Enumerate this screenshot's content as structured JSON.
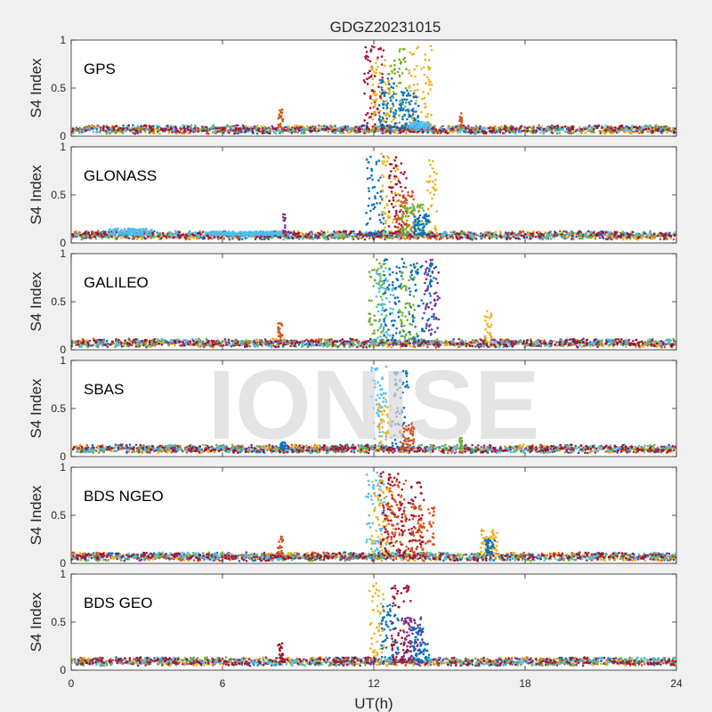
{
  "chart_data": {
    "type": "scatter",
    "title": "GDGZ20231015",
    "xlabel": "UT(h)",
    "ylabel": "S4 Index",
    "xlim": [
      0,
      24
    ],
    "ylim": [
      0,
      1
    ],
    "xticks": [
      0,
      6,
      12,
      18,
      24
    ],
    "yticks": [
      0,
      0.5,
      1
    ],
    "watermark": "IONISE",
    "colors": [
      "#0072BD",
      "#D95319",
      "#EDB120",
      "#7E2F8E",
      "#77AC30",
      "#4DBEEE",
      "#A2142F"
    ],
    "panels": [
      {
        "label": "GPS",
        "baseline": 0.07,
        "bursts": [
          {
            "x0": 11.6,
            "x1": 12.4,
            "y": 0.95,
            "color": 6
          },
          {
            "x0": 11.9,
            "x1": 12.8,
            "y": 0.8,
            "color": 2
          },
          {
            "x0": 12.6,
            "x1": 13.3,
            "y": 0.95,
            "color": 4
          },
          {
            "x0": 12.2,
            "x1": 12.9,
            "y": 0.6,
            "color": 0
          },
          {
            "x0": 13.4,
            "x1": 14.3,
            "y": 0.95,
            "color": 2
          },
          {
            "x0": 13.0,
            "x1": 13.8,
            "y": 0.5,
            "color": 0
          },
          {
            "x0": 13.4,
            "x1": 14.2,
            "y": 0.15,
            "color": 5
          },
          {
            "x0": 8.2,
            "x1": 8.4,
            "y": 0.28,
            "color": 1
          },
          {
            "x0": 15.4,
            "x1": 15.5,
            "y": 0.25,
            "color": 1
          }
        ]
      },
      {
        "label": "GLONASS",
        "baseline": 0.08,
        "bursts": [
          {
            "x0": 11.7,
            "x1": 12.4,
            "y": 0.9,
            "color": 0
          },
          {
            "x0": 12.3,
            "x1": 13.0,
            "y": 0.95,
            "color": 2
          },
          {
            "x0": 12.6,
            "x1": 13.3,
            "y": 0.9,
            "color": 6
          },
          {
            "x0": 12.8,
            "x1": 13.6,
            "y": 0.55,
            "color": 1
          },
          {
            "x0": 13.1,
            "x1": 14.0,
            "y": 0.4,
            "color": 4
          },
          {
            "x0": 14.1,
            "x1": 14.5,
            "y": 0.9,
            "color": 2
          },
          {
            "x0": 13.6,
            "x1": 14.2,
            "y": 0.3,
            "color": 0
          },
          {
            "x0": 1.5,
            "x1": 3.2,
            "y": 0.15,
            "color": 5
          },
          {
            "x0": 5.5,
            "x1": 8.4,
            "y": 0.12,
            "color": 5
          },
          {
            "x0": 8.4,
            "x1": 8.5,
            "y": 0.34,
            "color": 3
          }
        ]
      },
      {
        "label": "GALILEO",
        "baseline": 0.07,
        "bursts": [
          {
            "x0": 11.8,
            "x1": 12.5,
            "y": 0.95,
            "color": 4
          },
          {
            "x0": 12.1,
            "x1": 12.8,
            "y": 0.85,
            "color": 5
          },
          {
            "x0": 12.4,
            "x1": 13.2,
            "y": 0.95,
            "color": 0
          },
          {
            "x0": 13.0,
            "x1": 13.7,
            "y": 0.9,
            "color": 4
          },
          {
            "x0": 13.4,
            "x1": 14.4,
            "y": 0.9,
            "color": 0
          },
          {
            "x0": 14.0,
            "x1": 14.6,
            "y": 0.95,
            "color": 3
          },
          {
            "x0": 16.4,
            "x1": 16.7,
            "y": 0.4,
            "color": 2
          },
          {
            "x0": 8.2,
            "x1": 8.4,
            "y": 0.28,
            "color": 1
          }
        ]
      },
      {
        "label": "SBAS",
        "baseline": 0.08,
        "bursts": [
          {
            "x0": 11.9,
            "x1": 12.5,
            "y": 0.95,
            "color": 5
          },
          {
            "x0": 12.2,
            "x1": 12.7,
            "y": 0.6,
            "color": 2
          },
          {
            "x0": 12.7,
            "x1": 13.4,
            "y": 0.9,
            "color": 0
          },
          {
            "x0": 13.0,
            "x1": 13.6,
            "y": 0.35,
            "color": 1
          },
          {
            "x0": 8.3,
            "x1": 8.5,
            "y": 0.15,
            "color": 0
          },
          {
            "x0": 15.4,
            "x1": 15.5,
            "y": 0.2,
            "color": 4
          }
        ]
      },
      {
        "label": "BDS NGEO",
        "baseline": 0.07,
        "bursts": [
          {
            "x0": 11.7,
            "x1": 12.5,
            "y": 0.95,
            "color": 5
          },
          {
            "x0": 11.9,
            "x1": 12.8,
            "y": 0.9,
            "color": 2
          },
          {
            "x0": 12.2,
            "x1": 13.0,
            "y": 0.95,
            "color": 6
          },
          {
            "x0": 12.5,
            "x1": 13.3,
            "y": 0.9,
            "color": 1
          },
          {
            "x0": 13.0,
            "x1": 14.0,
            "y": 0.85,
            "color": 6
          },
          {
            "x0": 13.5,
            "x1": 14.4,
            "y": 0.6,
            "color": 1
          },
          {
            "x0": 16.2,
            "x1": 16.9,
            "y": 0.35,
            "color": 2
          },
          {
            "x0": 16.4,
            "x1": 16.8,
            "y": 0.25,
            "color": 0
          },
          {
            "x0": 8.2,
            "x1": 8.4,
            "y": 0.28,
            "color": 1
          }
        ]
      },
      {
        "label": "BDS GEO",
        "baseline": 0.09,
        "bursts": [
          {
            "x0": 11.8,
            "x1": 12.4,
            "y": 0.95,
            "color": 2
          },
          {
            "x0": 12.3,
            "x1": 13.0,
            "y": 0.7,
            "color": 0
          },
          {
            "x0": 12.7,
            "x1": 13.5,
            "y": 0.9,
            "color": 6
          },
          {
            "x0": 13.1,
            "x1": 14.0,
            "y": 0.55,
            "color": 3
          },
          {
            "x0": 13.5,
            "x1": 14.2,
            "y": 0.45,
            "color": 0
          },
          {
            "x0": 8.2,
            "x1": 8.4,
            "y": 0.28,
            "color": 6
          }
        ]
      }
    ]
  }
}
